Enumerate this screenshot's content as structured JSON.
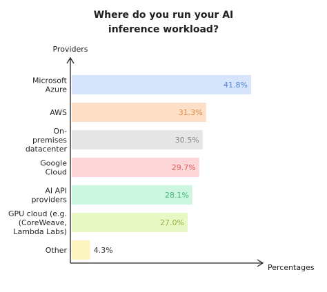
{
  "chart_data": {
    "type": "bar",
    "orientation": "horizontal",
    "title_lines": [
      "Where do you run your AI",
      "inference workload?"
    ],
    "ylabel": "Providers",
    "xlabel": "Percentages",
    "categories": [
      [
        "Microsoft",
        "Azure"
      ],
      [
        "AWS"
      ],
      [
        "On-",
        "premises",
        "datacenter"
      ],
      [
        "Google",
        "Cloud"
      ],
      [
        "AI API",
        "providers"
      ],
      [
        "GPU cloud (e.g.",
        "(CoreWeave,",
        "Lambda Labs)"
      ],
      [
        "Other"
      ]
    ],
    "values": [
      41.8,
      31.3,
      30.5,
      29.7,
      28.1,
      27.0,
      4.3
    ],
    "value_labels": [
      "41.8%",
      "31.3%",
      "30.5%",
      "29.7%",
      "28.1%",
      "27.0%",
      "4.3%"
    ],
    "bar_colors": [
      "#d6e5fb",
      "#fddfc7",
      "#e6e6e6",
      "#fcd6d6",
      "#cdf6e1",
      "#e8f7c4",
      "#fdf5c0"
    ],
    "label_colors": [
      "#4f86d6",
      "#e08a3c",
      "#888888",
      "#e35f5f",
      "#3fb97c",
      "#8fb83a",
      "#333333"
    ],
    "xlim": [
      0,
      45
    ],
    "grid": false,
    "legend": "none"
  }
}
